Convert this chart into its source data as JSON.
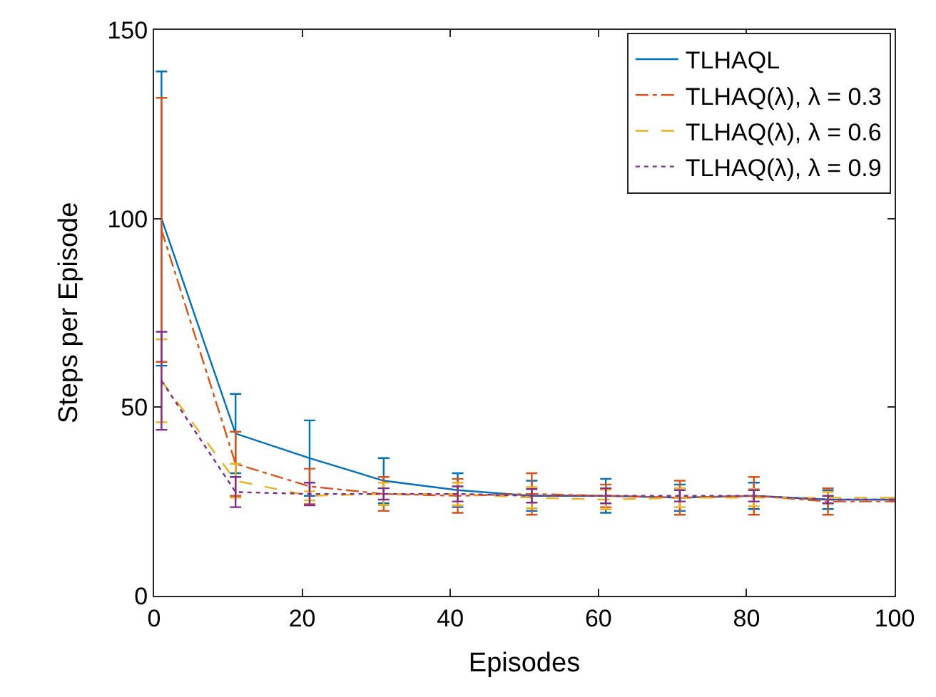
{
  "chart_data": {
    "type": "line",
    "xlabel": "Episodes",
    "ylabel": "Steps per Episode",
    "xlim": [
      0,
      100
    ],
    "ylim": [
      0,
      150
    ],
    "xticks": [
      0,
      20,
      40,
      60,
      80,
      100
    ],
    "yticks": [
      0,
      50,
      100,
      150
    ],
    "x": [
      1,
      11,
      21,
      31,
      41,
      51,
      61,
      71,
      81,
      91,
      100
    ],
    "legend": "top right",
    "series": [
      {
        "name": "TLHAQL",
        "color": "#0072bd",
        "line_style": "solid",
        "values": [
          100,
          43,
          36.5,
          30.5,
          28,
          26.5,
          26.5,
          26,
          26.5,
          25.5,
          25.5
        ],
        "errors": [
          39,
          10.5,
          10,
          6,
          4.5,
          4,
          4.5,
          3.5,
          3.5,
          2.5,
          null
        ]
      },
      {
        "name": "TLHAQ(λ), λ = 0.3",
        "color": "#d95319",
        "line_style": "dashdot",
        "values": [
          97,
          35,
          29,
          27,
          26.5,
          27,
          26.5,
          26,
          26.5,
          25,
          25
        ],
        "errors": [
          35,
          8.5,
          4.7,
          4.5,
          4.5,
          5.5,
          3,
          4.5,
          5,
          3.5,
          null
        ]
      },
      {
        "name": "TLHAQ(λ), λ = 0.6",
        "color": "#edb120",
        "line_style": "dashed",
        "values": [
          57,
          30.5,
          26.5,
          27,
          27,
          26,
          25.5,
          26,
          26,
          26,
          26
        ],
        "errors": [
          11,
          4.5,
          1.2,
          3,
          3,
          2.8,
          2.6,
          2.5,
          2.3,
          1.5,
          null
        ]
      },
      {
        "name": "TLHAQ(λ), λ = 0.9",
        "color": "#7e2f8e",
        "line_style": "dotted",
        "values": [
          57,
          27.5,
          27,
          27,
          27,
          26.5,
          26.5,
          26.5,
          26.5,
          25.5,
          25.5
        ],
        "errors": [
          13,
          4,
          3,
          1.5,
          2,
          1.8,
          2,
          1.5,
          1.5,
          1,
          null
        ]
      }
    ]
  }
}
